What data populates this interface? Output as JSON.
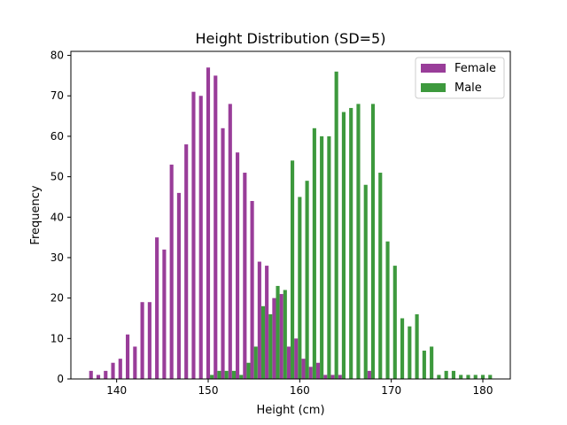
{
  "chart_data": {
    "type": "bar",
    "title": "Height Distribution (SD=5)",
    "xlabel": "Height (cm)",
    "ylabel": "Frequency",
    "xlim": [
      135,
      183
    ],
    "ylim": [
      0,
      81
    ],
    "x_ticks": [
      140,
      150,
      160,
      170,
      180
    ],
    "y_ticks": [
      0,
      10,
      20,
      30,
      40,
      50,
      60,
      70,
      80
    ],
    "legend_position": "top-right",
    "grid": false,
    "bin_width": 0.4,
    "series": [
      {
        "name": "Female",
        "color": "#993d99",
        "x": [
          137.2,
          138.0,
          138.8,
          139.6,
          140.4,
          141.2,
          142.0,
          142.8,
          143.6,
          144.4,
          145.2,
          146.0,
          146.8,
          147.6,
          148.4,
          149.2,
          150.0,
          150.8,
          151.6,
          152.4,
          153.2,
          154.0,
          154.8,
          155.6,
          156.4,
          157.2,
          158.0,
          158.8,
          159.6,
          160.4,
          161.2,
          162.0,
          162.8,
          163.6,
          164.4,
          167.6
        ],
        "values": [
          2,
          1,
          2,
          4,
          5,
          11,
          8,
          19,
          19,
          35,
          32,
          53,
          46,
          58,
          71,
          70,
          77,
          75,
          62,
          68,
          56,
          51,
          44,
          29,
          28,
          20,
          21,
          8,
          10,
          5,
          3,
          4,
          1,
          1,
          1,
          2
        ]
      },
      {
        "name": "Male",
        "color": "#3d993d",
        "x": [
          150.4,
          151.2,
          152.0,
          152.8,
          153.6,
          154.4,
          155.2,
          156.0,
          156.8,
          157.6,
          158.4,
          159.2,
          160.0,
          160.8,
          161.6,
          162.4,
          163.2,
          164.0,
          164.8,
          165.6,
          166.4,
          167.2,
          168.0,
          168.8,
          169.6,
          170.4,
          171.2,
          172.0,
          172.8,
          173.6,
          174.4,
          175.2,
          176.0,
          176.8,
          177.6,
          178.4,
          179.2,
          180.0,
          180.8
        ],
        "values": [
          1,
          2,
          2,
          2,
          1,
          4,
          8,
          18,
          16,
          23,
          22,
          54,
          45,
          49,
          62,
          60,
          60,
          76,
          66,
          67,
          68,
          48,
          68,
          51,
          34,
          28,
          15,
          13,
          16,
          7,
          8,
          1,
          2,
          2,
          1,
          1,
          1,
          1,
          1
        ]
      }
    ]
  }
}
